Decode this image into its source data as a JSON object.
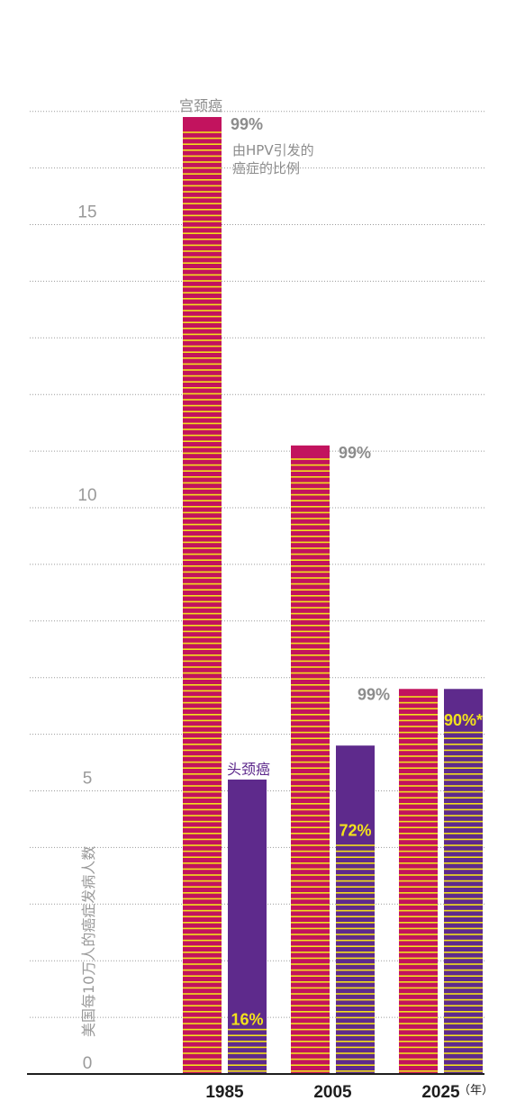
{
  "chart_data": {
    "type": "bar",
    "ylabel": "美国每10万人的癌症发病人数",
    "xunit": "（年）",
    "categories": [
      "1985",
      "2005",
      "2025"
    ],
    "ylim": [
      0,
      17
    ],
    "yticks": [
      0,
      5,
      10,
      15
    ],
    "grid": true,
    "series": [
      {
        "name": "宫颈癌",
        "color": "#c2135e",
        "values": [
          16.9,
          11.1,
          6.8
        ],
        "hpv_share_labels": [
          "99%",
          "99%",
          "99%"
        ],
        "hpv_share": [
          99,
          99,
          99
        ]
      },
      {
        "name": "头颈癌",
        "color": "#5e2a8c",
        "values": [
          5.2,
          5.8,
          6.8
        ],
        "hpv_share_labels": [
          "16%",
          "72%",
          "90%*"
        ],
        "hpv_share": [
          16,
          72,
          90
        ]
      }
    ],
    "annotation": [
      "由HPV引发的",
      "癌症的比例"
    ],
    "stripe_color": "#f2e21c"
  }
}
